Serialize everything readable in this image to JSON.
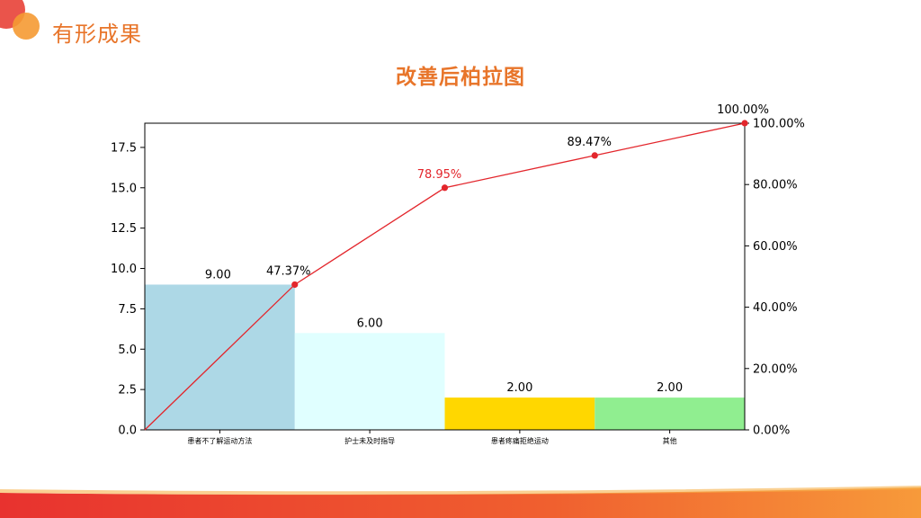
{
  "slide": {
    "title": "有形成果"
  },
  "colors": {
    "accent": "#e8752a",
    "line": "#e3262c",
    "bars": [
      "#add8e6",
      "#e0ffff",
      "#ffd700",
      "#90ee90"
    ]
  },
  "chart_data": {
    "type": "bar",
    "title": "改善后柏拉图",
    "categories": [
      "患者不了解运动方法",
      "护士未及时指导",
      "患者疼痛拒绝运动",
      "其他"
    ],
    "values": [
      9,
      6,
      2,
      2
    ],
    "value_labels": [
      "9.00",
      "6.00",
      "2.00",
      "2.00"
    ],
    "cumulative_percent": [
      0,
      47.37,
      78.95,
      89.47,
      100
    ],
    "cumulative_labels": [
      "47.37%",
      "78.95%",
      "89.47%",
      "100.00%"
    ],
    "ylim": [
      0,
      19
    ],
    "yticks": [
      0,
      2.5,
      5,
      7.5,
      10,
      12.5,
      15,
      17.5
    ],
    "ytick_labels": [
      "0.0",
      "2.5",
      "5.0",
      "7.5",
      "10.0",
      "12.5",
      "15.0",
      "17.5"
    ],
    "y2lim": [
      0,
      100
    ],
    "y2ticks": [
      0,
      20,
      40,
      60,
      80,
      100
    ],
    "y2tick_labels": [
      "0.00%",
      "20.00%",
      "40.00%",
      "60.00%",
      "80.00%",
      "100.00%"
    ],
    "grid": false,
    "legend": "none"
  }
}
